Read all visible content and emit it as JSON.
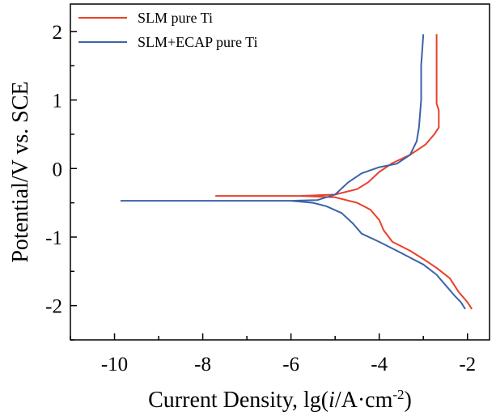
{
  "chart_data": {
    "type": "line",
    "xlabel_parts": [
      "Current Density, lg(",
      "i",
      "/A·cm",
      "-2",
      ")"
    ],
    "ylabel": "Potential/V vs. SCE",
    "xlim": [
      -11,
      -1.5
    ],
    "ylim": [
      -2.5,
      2.4
    ],
    "x_ticks": [
      -10,
      -8,
      -6,
      -4,
      -2
    ],
    "x_tick_labels": [
      "-10",
      "-8",
      "-6",
      "-4",
      "-2"
    ],
    "y_ticks": [
      -2,
      -1,
      0,
      1,
      2
    ],
    "y_tick_labels": [
      "-2",
      "-1",
      "0",
      "1",
      "2"
    ],
    "grid": false,
    "legend_position": "top-left",
    "series": [
      {
        "name": "SLM pure Ti",
        "color": "#e8402a",
        "points": [
          [
            -2.7,
            1.96
          ],
          [
            -2.7,
            1.6
          ],
          [
            -2.7,
            1.2
          ],
          [
            -2.7,
            0.95
          ],
          [
            -2.65,
            0.85
          ],
          [
            -2.65,
            0.6
          ],
          [
            -2.75,
            0.5
          ],
          [
            -2.95,
            0.35
          ],
          [
            -3.3,
            0.2
          ],
          [
            -3.7,
            0.08
          ],
          [
            -4.0,
            -0.05
          ],
          [
            -4.25,
            -0.2
          ],
          [
            -4.5,
            -0.3
          ],
          [
            -5.0,
            -0.38
          ],
          [
            -5.8,
            -0.4
          ],
          [
            -7.7,
            -0.4
          ],
          [
            -5.8,
            -0.4
          ],
          [
            -5.0,
            -0.42
          ],
          [
            -4.5,
            -0.5
          ],
          [
            -4.2,
            -0.6
          ],
          [
            -4.0,
            -0.75
          ],
          [
            -3.9,
            -0.9
          ],
          [
            -3.7,
            -1.07
          ],
          [
            -3.3,
            -1.2
          ],
          [
            -3.0,
            -1.32
          ],
          [
            -2.7,
            -1.45
          ],
          [
            -2.4,
            -1.6
          ],
          [
            -2.2,
            -1.8
          ],
          [
            -2.0,
            -1.95
          ],
          [
            -1.9,
            -2.05
          ]
        ]
      },
      {
        "name": "SLM+ECAP pure Ti",
        "color": "#3b62a8",
        "points": [
          [
            -3.0,
            1.96
          ],
          [
            -3.05,
            1.5
          ],
          [
            -3.05,
            1.0
          ],
          [
            -3.1,
            0.6
          ],
          [
            -3.15,
            0.4
          ],
          [
            -3.3,
            0.2
          ],
          [
            -3.6,
            0.07
          ],
          [
            -4.0,
            0.02
          ],
          [
            -4.4,
            -0.07
          ],
          [
            -4.7,
            -0.2
          ],
          [
            -5.0,
            -0.38
          ],
          [
            -5.4,
            -0.46
          ],
          [
            -6.0,
            -0.47
          ],
          [
            -9.85,
            -0.47
          ],
          [
            -6.0,
            -0.47
          ],
          [
            -5.5,
            -0.5
          ],
          [
            -5.2,
            -0.55
          ],
          [
            -4.85,
            -0.65
          ],
          [
            -4.6,
            -0.8
          ],
          [
            -4.4,
            -0.95
          ],
          [
            -4.0,
            -1.07
          ],
          [
            -3.6,
            -1.2
          ],
          [
            -3.3,
            -1.3
          ],
          [
            -3.0,
            -1.4
          ],
          [
            -2.7,
            -1.55
          ],
          [
            -2.5,
            -1.7
          ],
          [
            -2.3,
            -1.85
          ],
          [
            -2.15,
            -1.95
          ],
          [
            -2.05,
            -2.05
          ]
        ]
      }
    ]
  }
}
